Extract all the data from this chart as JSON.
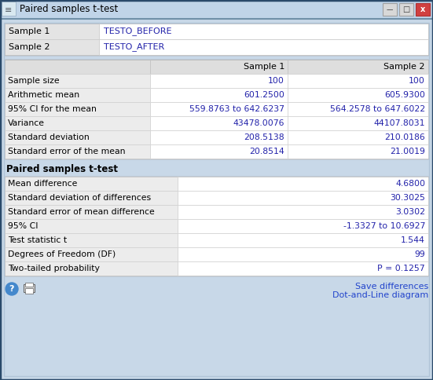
{
  "title": "Paired samples t-test",
  "sample1_label": "Sample 1",
  "sample2_label": "Sample 2",
  "sample1_name": "TESTO_BEFORE",
  "sample2_name": "TESTO_AFTER",
  "stats_rows": [
    [
      "Sample size",
      "100",
      "100"
    ],
    [
      "Arithmetic mean",
      "601.2500",
      "605.9300"
    ],
    [
      "95% CI for the mean",
      "559.8763 to 642.6237",
      "564.2578 to 647.6022"
    ],
    [
      "Variance",
      "43478.0076",
      "44107.8031"
    ],
    [
      "Standard deviation",
      "208.5138",
      "210.0186"
    ],
    [
      "Standard error of the mean",
      "20.8514",
      "21.0019"
    ]
  ],
  "ttest_title": "Paired samples t-test",
  "ttest_rows": [
    [
      "Mean difference",
      "4.6800"
    ],
    [
      "Standard deviation of differences",
      "30.3025"
    ],
    [
      "Standard error of mean difference",
      "3.0302"
    ],
    [
      "95% CI",
      "-1.3327 to 10.6927"
    ],
    [
      "Test statistic t",
      "1.544"
    ],
    [
      "Degrees of Freedom (DF)",
      "99"
    ],
    [
      "Two-tailed probability",
      "P = 0.1257"
    ]
  ],
  "link1": "Save differences",
  "link2": "Dot-and-Line diagram",
  "bg_color": "#c8d8e8",
  "titlebar_color": "#c8d8e8",
  "white": "#ffffff",
  "label_bg": "#e8e8e8",
  "cell_bg": "#ffffff",
  "border_color": "#a0b0c0",
  "black": "#000000",
  "blue": "#2222aa",
  "link_color": "#2244cc",
  "font_size": 7.5
}
